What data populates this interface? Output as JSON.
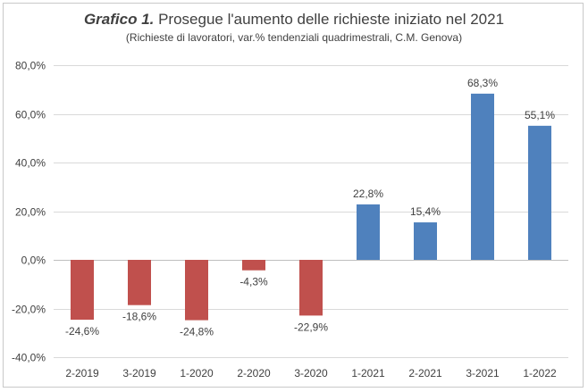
{
  "chart_data": {
    "type": "bar",
    "title_lead": "Grafico 1.",
    "title_rest": " Prosegue l'aumento delle richieste iniziato nel 2021",
    "subtitle": "(Richieste di lavoratori, var.% tendenziali quadrimestrali, C.M. Genova)",
    "categories": [
      "2-2019",
      "3-2019",
      "1-2020",
      "2-2020",
      "3-2020",
      "1-2021",
      "2-2021",
      "3-2021",
      "1-2022"
    ],
    "values": [
      -24.6,
      -18.6,
      -24.8,
      -4.3,
      -22.9,
      22.8,
      15.4,
      68.3,
      55.1
    ],
    "value_labels": [
      "-24,6%",
      "-18,6%",
      "-24,8%",
      "-4,3%",
      "-22,9%",
      "22,8%",
      "15,4%",
      "68,3%",
      "55,1%"
    ],
    "y_ticks": [
      80,
      60,
      40,
      20,
      0,
      -20,
      -40
    ],
    "y_tick_labels": [
      "80,0%",
      "60,0%",
      "40,0%",
      "20,0%",
      "0,0%",
      "-20,0%",
      "-40,0%"
    ],
    "ylim": [
      -40,
      80
    ],
    "grid": true,
    "colors": {
      "negative": "#c0504d",
      "positive": "#4f81bd",
      "grid": "#d9d9d9",
      "text": "#404040"
    }
  }
}
